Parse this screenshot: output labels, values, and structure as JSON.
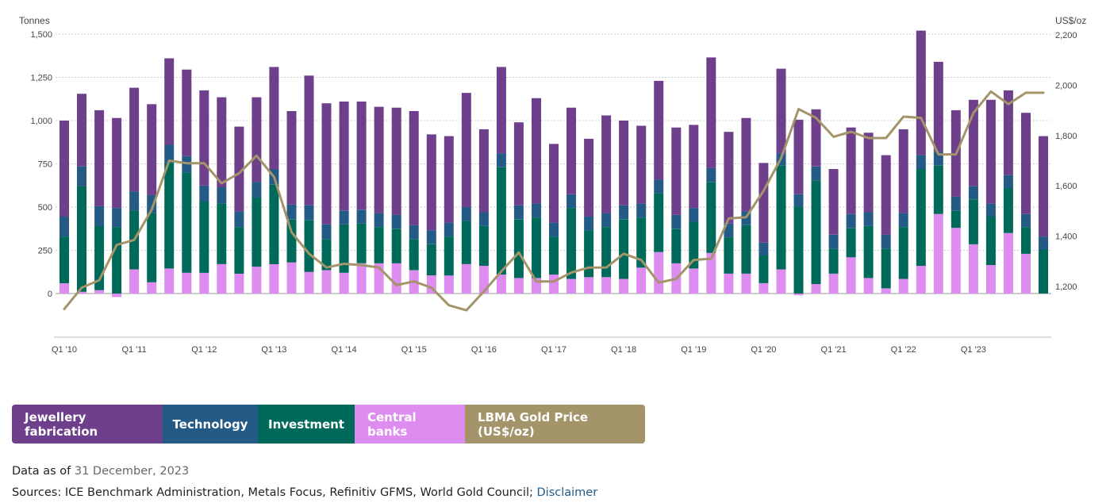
{
  "chart_data": {
    "type": "bar",
    "stacked": true,
    "left_unit": "Tonnes",
    "right_unit": "US$/oz",
    "y_left_lim": [
      -200,
      1500
    ],
    "y_left_ticks": [
      "1,500",
      "1,250",
      "1,000",
      "750",
      "500",
      "250",
      "0"
    ],
    "y_right_ticks": [
      "2,200",
      "2,000",
      "1,800",
      "1,600",
      "1,400",
      "1,200"
    ],
    "x_tick_labels": [
      "Q1 '10",
      "Q1 '11",
      "Q1 '12",
      "Q1 '13",
      "Q1 '14",
      "Q1 '15",
      "Q1 '16",
      "Q1 '17",
      "Q1 '18",
      "Q1 '19",
      "Q1 '20",
      "Q1 '21",
      "Q1 '22",
      "Q1 '23"
    ],
    "grid": true,
    "colors": {
      "jewellery": "#6e3f8b",
      "technology": "#245a86",
      "investment": "#006a5a",
      "central_banks": "#dd8cf0",
      "price": "#a39469"
    },
    "series": [
      {
        "name": "Jewellery fabrication",
        "values": [
          555,
          420,
          555,
          520,
          600,
          525,
          500,
          500,
          550,
          520,
          490,
          490,
          590,
          540,
          750,
          700,
          630,
          625,
          615,
          620,
          660,
          555,
          500,
          660,
          480,
          500,
          480,
          610,
          455,
          500,
          450,
          565,
          490,
          450,
          570,
          505,
          480,
          640,
          530,
          540,
          460,
          490,
          430,
          330,
          380,
          500,
          460,
          460,
          485,
          720,
          520,
          500,
          500,
          600,
          490,
          585,
          580
        ]
      },
      {
        "name": "Technology",
        "values": [
          115,
          115,
          115,
          110,
          110,
          105,
          105,
          95,
          95,
          95,
          90,
          90,
          90,
          85,
          85,
          85,
          80,
          80,
          80,
          80,
          80,
          80,
          80,
          80,
          80,
          80,
          80,
          80,
          80,
          80,
          80,
          80,
          80,
          80,
          80,
          80,
          80,
          80,
          80,
          80,
          75,
          70,
          75,
          80,
          80,
          80,
          80,
          80,
          80,
          80,
          80,
          80,
          75,
          75,
          75,
          75,
          75
        ]
      },
      {
        "name": "Investment",
        "values": [
          270,
          610,
          370,
          385,
          340,
          400,
          610,
          580,
          410,
          350,
          270,
          400,
          460,
          250,
          300,
          180,
          280,
          230,
          210,
          200,
          180,
          180,
          225,
          250,
          230,
          620,
          340,
          350,
          220,
          410,
          270,
          290,
          345,
          290,
          340,
          200,
          270,
          410,
          210,
          280,
          160,
          600,
          500,
          600,
          145,
          170,
          300,
          230,
          300,
          560,
          280,
          100,
          260,
          280,
          260,
          155,
          255
        ]
      },
      {
        "name": "Central banks",
        "values": [
          60,
          10,
          20,
          -20,
          140,
          65,
          145,
          120,
          120,
          170,
          115,
          155,
          170,
          180,
          125,
          135,
          120,
          175,
          175,
          175,
          135,
          105,
          105,
          170,
          160,
          110,
          90,
          90,
          110,
          85,
          95,
          95,
          85,
          150,
          240,
          175,
          145,
          235,
          115,
          115,
          60,
          140,
          -10,
          55,
          115,
          210,
          90,
          30,
          85,
          160,
          460,
          380,
          285,
          165,
          350,
          230,
          0
        ]
      },
      {
        "name": "LBMA Gold Price (US$/oz)",
        "values": [
          1110,
          1195,
          1225,
          1365,
          1385,
          1505,
          1700,
          1690,
          1690,
          1610,
          1650,
          1720,
          1635,
          1415,
          1330,
          1275,
          1290,
          1285,
          1275,
          1205,
          1220,
          1195,
          1125,
          1105,
          1180,
          1260,
          1335,
          1220,
          1220,
          1255,
          1275,
          1275,
          1330,
          1305,
          1215,
          1230,
          1305,
          1310,
          1470,
          1475,
          1580,
          1710,
          1905,
          1870,
          1795,
          1815,
          1790,
          1790,
          1875,
          1870,
          1725,
          1725,
          1890,
          1975,
          1925,
          1970,
          1970
        ]
      }
    ]
  },
  "legend": {
    "items": [
      {
        "label": "Jewellery fabrication",
        "color": "#6e3f8b"
      },
      {
        "label": "Technology",
        "color": "#245a86"
      },
      {
        "label": "Investment",
        "color": "#006a5a"
      },
      {
        "label": "Central banks",
        "color": "#dd8cf0"
      },
      {
        "label": "LBMA Gold Price (US$/oz)",
        "color": "#a39469"
      }
    ]
  },
  "footer": {
    "data_as_of_label": "Data as of",
    "data_as_of_date": "31 December, 2023",
    "sources_text": "Sources: ICE Benchmark Administration, Metals Focus, Refinitiv GFMS, World Gold Council;",
    "disclaimer_link": "Disclaimer"
  }
}
